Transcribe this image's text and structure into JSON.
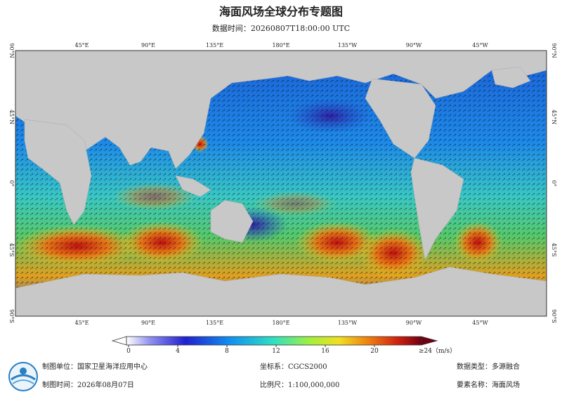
{
  "header": {
    "title": "海面风场全球分布专题图",
    "subtitle": "数据时间：20260807T18:00:00 UTC"
  },
  "map": {
    "longitude_labels": [
      "45°E",
      "90°E",
      "135°E",
      "180°E",
      "135°W",
      "90°W",
      "45°W"
    ],
    "latitude_labels": [
      "90°N",
      "45°N",
      "0°",
      "45°S",
      "90°S"
    ]
  },
  "legend": {
    "ticks": [
      0,
      4,
      8,
      12,
      16,
      20
    ],
    "max_label": "≥24（m/s）"
  },
  "footer": {
    "unit": "制图单位：国家卫星海洋应用中心",
    "coordinate_system": "坐标系：CGCS2000",
    "data_type": "数据类型：多源融合",
    "date": "制图时间：2026年08月07日",
    "scale": "比例尺：1:100,000,000",
    "element": "要素名称：海面风场"
  }
}
